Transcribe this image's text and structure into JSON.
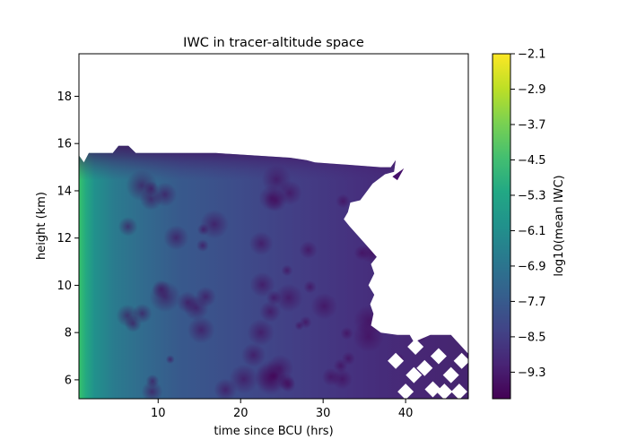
{
  "chart_data": {
    "type": "heatmap",
    "title": "IWC in tracer-altitude space",
    "xlabel": "time since BCU (hrs)",
    "ylabel": "height (km)",
    "xlim": [
      0.4,
      47.6
    ],
    "ylim": [
      5.2,
      19.8
    ],
    "xticks": [
      10,
      20,
      30,
      40
    ],
    "yticks": [
      6,
      8,
      10,
      12,
      14,
      16,
      18
    ],
    "colorbar": {
      "label": "log10(mean IWC)",
      "range": [
        -9.9,
        -2.1
      ],
      "ticks": [
        "-2.1",
        "-2.9",
        "-3.7",
        "-4.5",
        "-5.3",
        "-6.1",
        "-6.9",
        "-7.7",
        "-8.5",
        "-9.3"
      ],
      "colormap": "viridis"
    },
    "data_extent": {
      "top_boundary": [
        [
          0.4,
          15.5
        ],
        [
          1.0,
          15.2
        ],
        [
          1.6,
          15.6
        ],
        [
          4.5,
          15.6
        ],
        [
          5.2,
          15.9
        ],
        [
          6.4,
          15.9
        ],
        [
          7.3,
          15.6
        ],
        [
          13.0,
          15.6
        ],
        [
          17.0,
          15.6
        ],
        [
          26.0,
          15.4
        ],
        [
          28.0,
          15.3
        ],
        [
          29.0,
          15.2
        ],
        [
          33.0,
          15.1
        ],
        [
          37.0,
          15.0
        ],
        [
          38.2,
          15.0
        ],
        [
          38.8,
          15.3
        ],
        [
          38.6,
          14.8
        ],
        [
          37.5,
          14.7
        ],
        [
          36.0,
          14.3
        ],
        [
          34.5,
          13.6
        ],
        [
          33.3,
          13.5
        ],
        [
          33.0,
          13.1
        ],
        [
          32.5,
          12.8
        ],
        [
          33.2,
          12.5
        ],
        [
          35.0,
          11.8
        ],
        [
          36.5,
          11.2
        ],
        [
          35.8,
          10.9
        ],
        [
          36.2,
          10.5
        ],
        [
          35.5,
          10.0
        ],
        [
          36.2,
          9.6
        ],
        [
          35.7,
          9.2
        ],
        [
          36.1,
          8.8
        ],
        [
          35.8,
          8.3
        ],
        [
          37.0,
          8.0
        ],
        [
          39.0,
          7.9
        ],
        [
          40.5,
          7.9
        ],
        [
          41.0,
          7.6
        ],
        [
          43.0,
          7.9
        ],
        [
          45.5,
          7.9
        ],
        [
          47.6,
          7.1
        ],
        [
          47.6,
          5.2
        ]
      ],
      "max_value_region": "x < 3, height 6–14 km",
      "min_value_region": "top boundary near 15–16 km"
    }
  }
}
